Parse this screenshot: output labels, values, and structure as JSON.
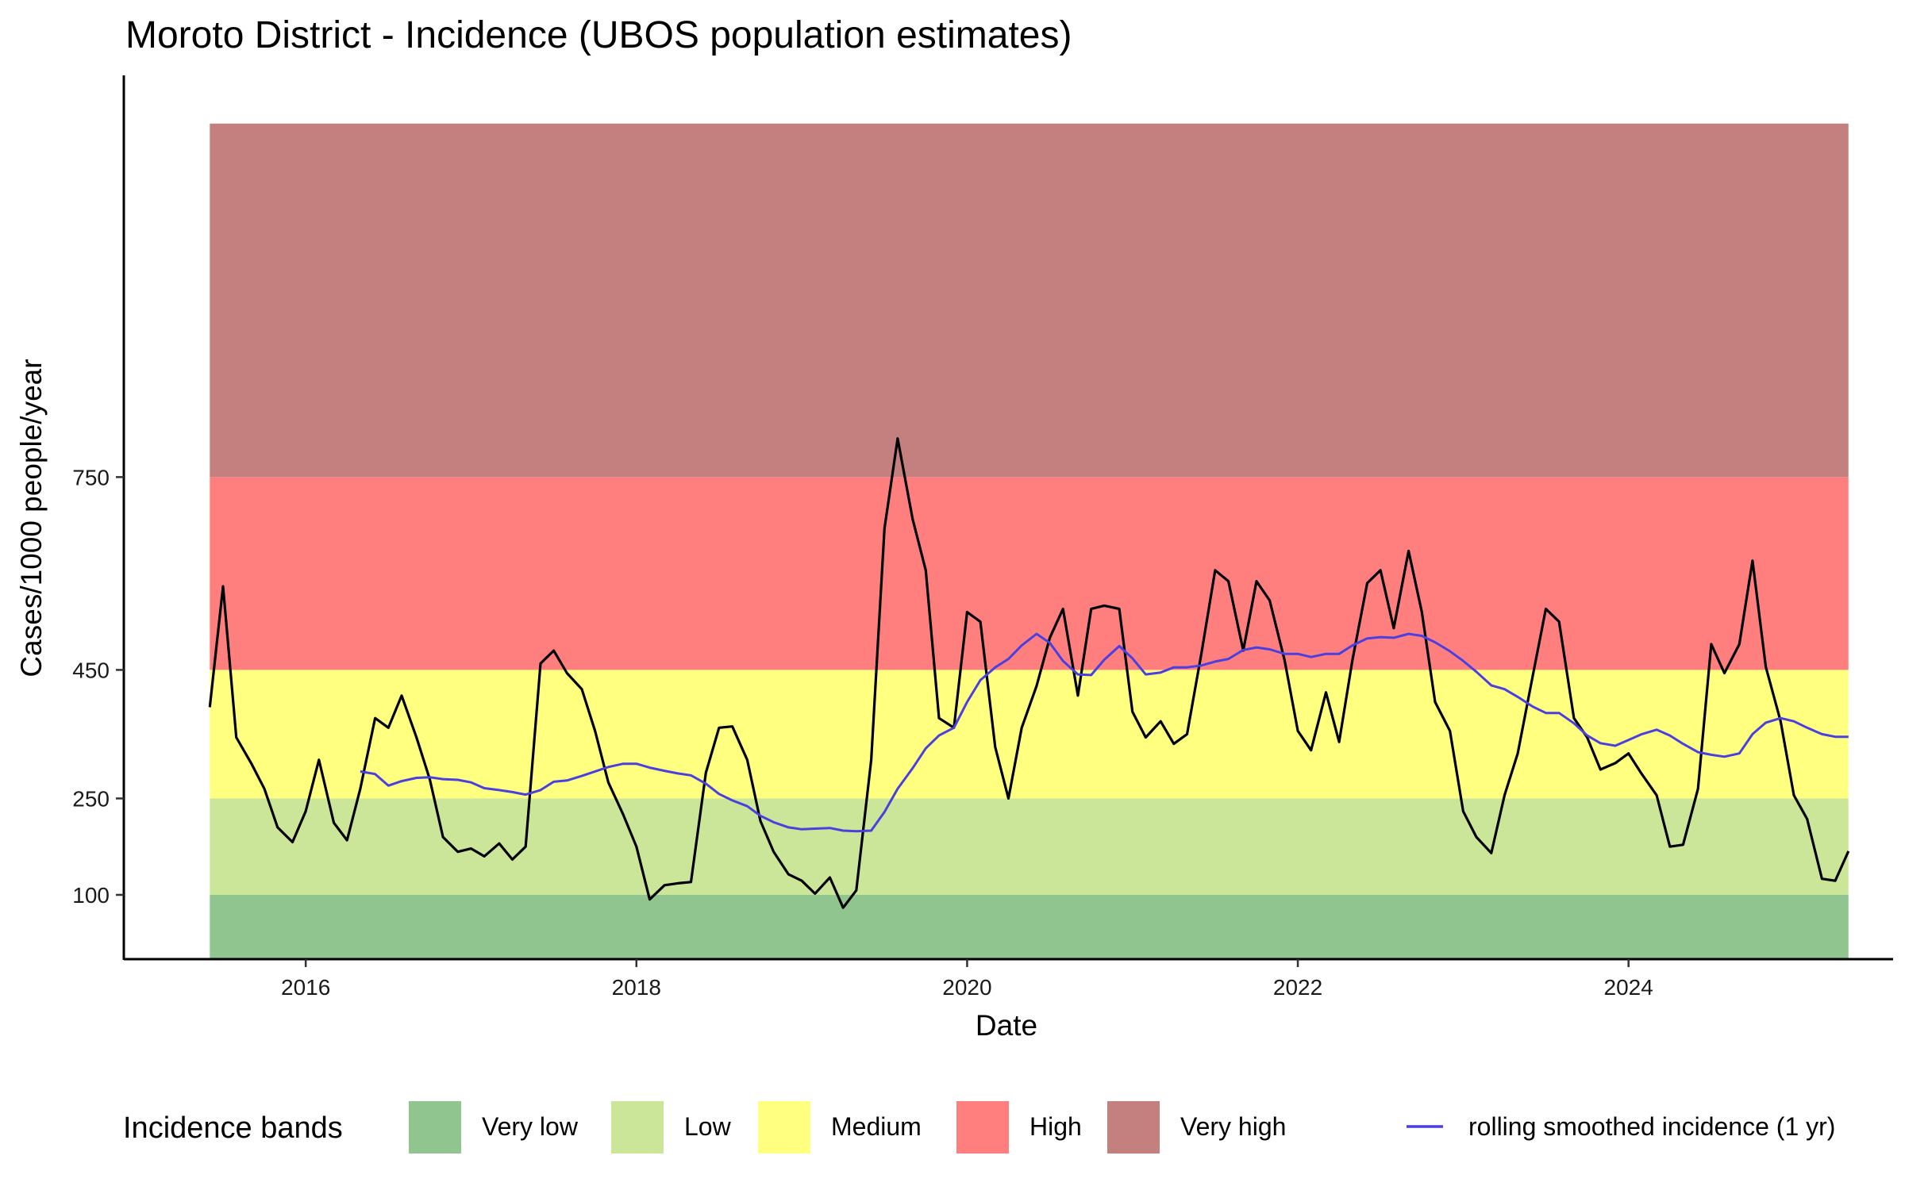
{
  "chart_data": {
    "type": "line",
    "title": "Moroto District - Incidence (UBOS population estimates)",
    "xlabel": "Date",
    "ylabel": "Cases/1000 people/year",
    "x_ticks": [
      "2016",
      "2018",
      "2020",
      "2022",
      "2024"
    ],
    "y_ticks": [
      100,
      250,
      450,
      750
    ],
    "xlim": [
      2014.9,
      2025.6
    ],
    "ylim": [
      0,
      1375
    ],
    "bands": [
      {
        "name": "Very low",
        "from": 0,
        "to": 100,
        "color": "#90c590"
      },
      {
        "name": "Low",
        "from": 100,
        "to": 250,
        "color": "#cce699"
      },
      {
        "name": "Medium",
        "from": 250,
        "to": 450,
        "color": "#ffff80"
      },
      {
        "name": "High",
        "from": 450,
        "to": 750,
        "color": "#ff7f7f"
      },
      {
        "name": "Very high",
        "from": 750,
        "to": 1300,
        "color": "#c47f7f"
      }
    ],
    "band_x_range": [
      2015.42,
      2025.33
    ],
    "series": [
      {
        "kind": "monthly incidence",
        "color": "#000000",
        "x": [
          2015.42,
          2015.5,
          2015.58,
          2015.67,
          2015.75,
          2015.83,
          2015.92,
          2016.0,
          2016.08,
          2016.17,
          2016.25,
          2016.33,
          2016.42,
          2016.5,
          2016.58,
          2016.67,
          2016.75,
          2016.83,
          2016.92,
          2017.0,
          2017.08,
          2017.17,
          2017.25,
          2017.33,
          2017.42,
          2017.5,
          2017.58,
          2017.67,
          2017.75,
          2017.83,
          2017.92,
          2018.0,
          2018.08,
          2018.17,
          2018.25,
          2018.33,
          2018.42,
          2018.5,
          2018.58,
          2018.67,
          2018.75,
          2018.83,
          2018.92,
          2019.0,
          2019.08,
          2019.17,
          2019.25,
          2019.33,
          2019.42,
          2019.5,
          2019.58,
          2019.67,
          2019.75,
          2019.83,
          2019.92,
          2020.0,
          2020.08,
          2020.17,
          2020.25,
          2020.33,
          2020.42,
          2020.5,
          2020.58,
          2020.67,
          2020.75,
          2020.83,
          2020.92,
          2021.0,
          2021.08,
          2021.17,
          2021.25,
          2021.33,
          2021.42,
          2021.5,
          2021.58,
          2021.67,
          2021.75,
          2021.83,
          2021.92,
          2022.0,
          2022.08,
          2022.17,
          2022.25,
          2022.33,
          2022.42,
          2022.5,
          2022.58,
          2022.67,
          2022.75,
          2022.83,
          2022.92,
          2023.0,
          2023.08,
          2023.17,
          2023.25,
          2023.33,
          2023.42,
          2023.5,
          2023.58,
          2023.67,
          2023.75,
          2023.83,
          2023.92,
          2024.0,
          2024.08,
          2024.17,
          2024.25,
          2024.33,
          2024.42,
          2024.5,
          2024.58,
          2024.67,
          2024.75,
          2024.83,
          2024.92,
          2025.0,
          2025.08,
          2025.17,
          2025.25,
          2025.33
        ],
        "y": [
          392,
          580,
          345,
          305,
          265,
          205,
          182,
          230,
          310,
          212,
          185,
          265,
          375,
          360,
          410,
          345,
          280,
          190,
          167,
          172,
          160,
          180,
          155,
          175,
          460,
          480,
          445,
          420,
          355,
          275,
          225,
          175,
          93,
          115,
          118,
          120,
          290,
          360,
          362,
          310,
          215,
          167,
          132,
          122,
          102,
          127,
          80,
          107,
          310,
          670,
          810,
          685,
          605,
          375,
          360,
          540,
          525,
          330,
          250,
          360,
          425,
          500,
          545,
          410,
          545,
          550,
          545,
          385,
          345,
          370,
          335,
          350,
          480,
          605,
          588,
          480,
          588,
          558,
          465,
          355,
          325,
          415,
          338,
          465,
          585,
          605,
          515,
          635,
          540,
          400,
          355,
          230,
          190,
          165,
          255,
          320,
          440,
          545,
          525,
          375,
          345,
          295,
          305,
          320,
          288,
          255,
          175,
          178,
          265,
          490,
          445,
          490,
          620,
          455,
          370,
          255,
          218,
          125,
          122,
          168
        ]
      },
      {
        "name": "rolling smoothed incidence (1 yr)",
        "color": "#4a3fe0",
        "x": [
          2016.33,
          2016.42,
          2016.5,
          2016.58,
          2016.67,
          2016.75,
          2016.83,
          2016.92,
          2017.0,
          2017.08,
          2017.17,
          2017.25,
          2017.33,
          2017.42,
          2017.5,
          2017.58,
          2017.67,
          2017.75,
          2017.83,
          2017.92,
          2018.0,
          2018.08,
          2018.17,
          2018.25,
          2018.33,
          2018.42,
          2018.5,
          2018.58,
          2018.67,
          2018.75,
          2018.83,
          2018.92,
          2019.0,
          2019.08,
          2019.17,
          2019.25,
          2019.33,
          2019.42,
          2019.5,
          2019.58,
          2019.67,
          2019.75,
          2019.83,
          2019.92,
          2020.0,
          2020.08,
          2020.17,
          2020.25,
          2020.33,
          2020.42,
          2020.5,
          2020.58,
          2020.67,
          2020.75,
          2020.83,
          2020.92,
          2021.0,
          2021.08,
          2021.17,
          2021.25,
          2021.33,
          2021.42,
          2021.5,
          2021.58,
          2021.67,
          2021.75,
          2021.83,
          2021.92,
          2022.0,
          2022.08,
          2022.17,
          2022.25,
          2022.33,
          2022.42,
          2022.5,
          2022.58,
          2022.67,
          2022.75,
          2022.83,
          2022.92,
          2023.0,
          2023.08,
          2023.17,
          2023.25,
          2023.33,
          2023.42,
          2023.5,
          2023.58,
          2023.67,
          2023.75,
          2023.83,
          2023.92,
          2024.0,
          2024.08,
          2024.17,
          2024.25,
          2024.33,
          2024.42,
          2024.5,
          2024.58,
          2024.67,
          2024.75,
          2024.83,
          2024.92,
          2025.0,
          2025.08,
          2025.17,
          2025.25,
          2025.33
        ],
        "y": [
          292,
          288,
          270,
          277,
          282,
          283,
          280,
          279,
          275,
          266,
          263,
          260,
          256,
          263,
          276,
          278,
          285,
          292,
          299,
          304,
          304,
          298,
          293,
          289,
          286,
          273,
          257,
          247,
          238,
          223,
          213,
          205,
          202,
          203,
          204,
          200,
          199,
          200,
          229,
          265,
          297,
          328,
          348,
          360,
          400,
          434,
          454,
          467,
          488,
          506,
          492,
          464,
          443,
          442,
          466,
          487,
          468,
          443,
          446,
          454,
          454,
          457,
          463,
          467,
          481,
          485,
          482,
          475,
          475,
          470,
          475,
          475,
          488,
          499,
          501,
          500,
          506,
          503,
          493,
          479,
          464,
          447,
          426,
          420,
          408,
          393,
          383,
          383,
          367,
          348,
          336,
          332,
          341,
          350,
          357,
          348,
          335,
          322,
          318,
          315,
          320,
          350,
          368,
          375,
          370,
          360,
          350,
          346,
          346
        ]
      }
    ],
    "legend": {
      "position": "bottom",
      "title": "Incidence bands",
      "items": [
        "Very low",
        "Low",
        "Medium",
        "High",
        "Very high"
      ],
      "line_item": "rolling smoothed incidence (1 yr)"
    },
    "grid": false
  }
}
